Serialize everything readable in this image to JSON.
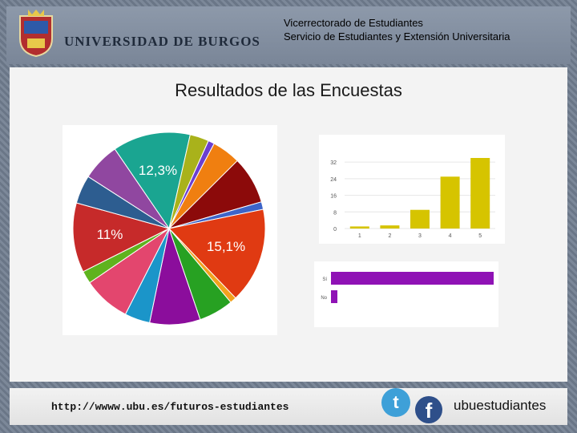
{
  "header": {
    "university": "UNIVERSIDAD DE BURGOS",
    "org_line1": "Vicerrectorado de Estudiantes",
    "org_line2": "Servicio de Estudiantes y Extensión Universitaria"
  },
  "page_title": "Resultados de las Encuestas",
  "footer": {
    "url": "http://wwww.ubu.es/futuros-estudiantes",
    "social_handle": "ubuestudiantes",
    "twitter_icon": "twitter-icon",
    "facebook_icon": "facebook-icon"
  },
  "chart_data": [
    {
      "type": "pie",
      "values": [
        12.3,
        3.0,
        1.0,
        4.5,
        7.5,
        1.2,
        15.1,
        1.0,
        5.5,
        8.0,
        4.0,
        7.5,
        2.0,
        11.0,
        4.5,
        6.0
      ],
      "colors": [
        "#1aa591",
        "#a9b21b",
        "#6b3fd0",
        "#f07f10",
        "#8c0a0a",
        "#3d64c8",
        "#e03a12",
        "#f2a21e",
        "#27a122",
        "#8b0d9c",
        "#1b95c9",
        "#e3466e",
        "#5fb31e",
        "#c62a2a",
        "#2d5d90",
        "#9047a0"
      ],
      "data_labels": [
        "12,3%",
        "",
        "",
        "",
        "",
        "",
        "15,1%",
        "",
        "",
        "",
        "",
        "",
        "",
        "11%",
        "",
        ""
      ]
    },
    {
      "type": "bar",
      "categories": [
        "1",
        "2",
        "3",
        "4",
        "5"
      ],
      "values": [
        1,
        1.5,
        9,
        25,
        34
      ],
      "yticks": [
        "0",
        "8",
        "16",
        "24",
        "32"
      ],
      "ylim": [
        0,
        34
      ],
      "color": "#d6c400"
    },
    {
      "type": "bar",
      "orientation": "horizontal",
      "categories": [
        "Sí",
        "No"
      ],
      "values": [
        97,
        3
      ],
      "color": "#8f12b5"
    }
  ]
}
